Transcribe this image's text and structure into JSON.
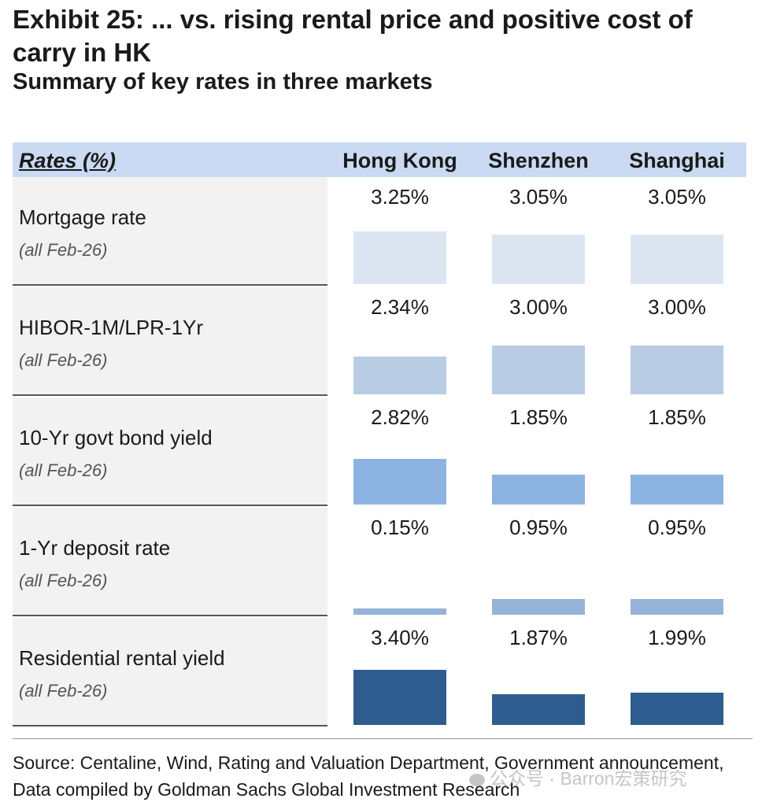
{
  "chart_data": {
    "type": "table",
    "title": "Exhibit 25: ... vs. rising rental price and positive cost of carry in HK",
    "subtitle": "Summary of key rates in three markets",
    "header_label": "Rates (%)",
    "columns": [
      "Hong Kong",
      "Shenzhen",
      "Shanghai"
    ],
    "rows": [
      {
        "label": "Mortgage rate",
        "note": "(all Feb-26)",
        "values": [
          3.25,
          3.05,
          3.05
        ],
        "labels": [
          "3.25%",
          "3.05%",
          "3.05%"
        ],
        "color": "#dce6f2"
      },
      {
        "label": "HIBOR-1M/LPR-1Yr",
        "note": "(all Feb-26)",
        "values": [
          2.34,
          3.0,
          3.0
        ],
        "labels": [
          "2.34%",
          "3.00%",
          "3.00%"
        ],
        "color": "#b8cce4"
      },
      {
        "label": "10-Yr govt bond yield",
        "note": "(all Feb-26)",
        "values": [
          2.82,
          1.85,
          1.85
        ],
        "labels": [
          "2.82%",
          "1.85%",
          "1.85%"
        ],
        "color": "#8db3e2"
      },
      {
        "label": "1-Yr deposit rate",
        "note": "(all Feb-26)",
        "values": [
          0.15,
          0.95,
          0.95
        ],
        "labels": [
          "0.15%",
          "0.95%",
          "0.95%"
        ],
        "color": "#95b3d7"
      },
      {
        "label": "Residential rental yield",
        "note": "(all Feb-26)",
        "values": [
          3.4,
          1.87,
          1.99
        ],
        "labels": [
          "3.40%",
          "1.87%",
          "1.99%"
        ],
        "color": "#2e5c8e"
      }
    ]
  },
  "source": "Source: Centaline, Wind, Rating and Valuation Department, Government announcement, Data compiled by Goldman Sachs Global Investment Research",
  "watermark": "公众号 · Barron宏策研究"
}
